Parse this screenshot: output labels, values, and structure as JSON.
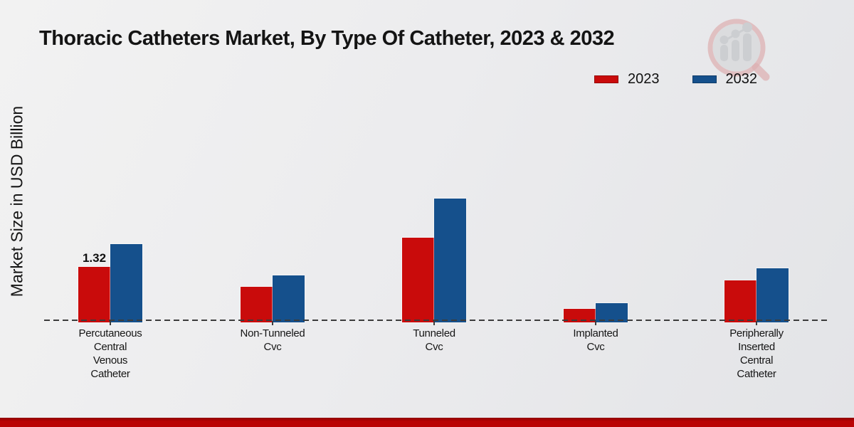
{
  "page": {
    "title": "Thoracic Catheters Market, By Type Of Catheter, 2023 & 2032",
    "y_axis_label": "Market Size in USD Billion"
  },
  "legend": [
    {
      "label": "2023",
      "color": "#c90b0b"
    },
    {
      "label": "2032",
      "color": "#15508c"
    }
  ],
  "icons": {
    "logo": "magnifier-bar-chart-watermark-logo"
  },
  "accent_colors": {
    "series_2023_red": "#c90b0b",
    "series_2032_blue": "#15508c",
    "footer_strip_red": "#ba0404",
    "axis_dash_gray": "#3c3c3c"
  },
  "chart_data": {
    "type": "bar",
    "title": "Thoracic Catheters Market, By Type Of Catheter, 2023 & 2032",
    "xlabel": "",
    "ylabel": "Market Size in USD Billion",
    "ylim": [
      0,
      3.2
    ],
    "grid": false,
    "legend_position": "top-right",
    "baseline_style": "dashed",
    "categories": [
      "Percutaneous Central Venous Catheter",
      "Non-Tunneled Cvc",
      "Tunneled Cvc",
      "Implanted Cvc",
      "Peripherally Inserted Central Catheter"
    ],
    "category_lines": [
      [
        "Percutaneous",
        "Central",
        "Venous",
        "Catheter"
      ],
      [
        "Non-Tunneled",
        "Cvc"
      ],
      [
        "Tunneled",
        "Cvc"
      ],
      [
        "Implanted",
        "Cvc"
      ],
      [
        "Peripherally",
        "Inserted",
        "Central",
        "Catheter"
      ]
    ],
    "series": [
      {
        "name": "2023",
        "color": "#c90b0b",
        "values": [
          1.32,
          0.85,
          2.02,
          0.32,
          1.0
        ]
      },
      {
        "name": "2032",
        "color": "#15508c",
        "values": [
          1.86,
          1.12,
          2.95,
          0.46,
          1.29
        ]
      }
    ],
    "annotations": [
      {
        "series_index": 0,
        "category_index": 0,
        "text": "1.32"
      }
    ]
  }
}
